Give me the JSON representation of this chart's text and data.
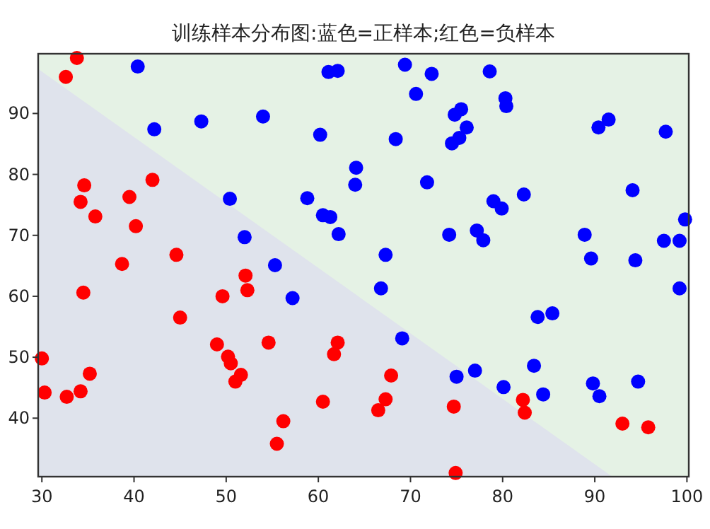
{
  "chart_data": {
    "type": "scatter",
    "title": "训练样本分布图:蓝色=正样本;红色=负样本",
    "marker": "circle",
    "xlim": [
      29.6,
      100.2
    ],
    "ylim": [
      30.4,
      99.8
    ],
    "xticks": [
      30,
      40,
      50,
      60,
      70,
      80,
      90,
      100
    ],
    "yticks": [
      40,
      50,
      60,
      70,
      80,
      90
    ],
    "bands": [
      {
        "axis": "x",
        "from": 29.6,
        "to": 100.2,
        "color": "#e5f2e5"
      }
    ],
    "series": [
      {
        "type": "area",
        "marker": "none",
        "color": "#dfe3ec",
        "x": [
          29.6,
          91.9
        ],
        "values": [
          97.3,
          30.4
        ]
      },
      {
        "color": "#ff0000",
        "x": [
          33.8,
          32.6,
          34.6,
          34.2,
          35.8,
          39.5,
          40.2,
          42.0,
          38.7,
          44.6,
          52.1,
          34.5,
          30.0,
          30.3,
          32.7,
          34.2,
          35.2,
          45.0,
          49.6,
          49.0,
          50.2,
          50.5,
          51.0,
          51.6,
          52.3,
          54.6,
          62.1,
          61.7,
          60.5,
          56.2,
          55.5,
          67.9,
          67.3,
          66.5,
          74.7,
          74.9,
          82.2,
          82.4,
          93.0,
          95.8
        ],
        "values": [
          99.1,
          96.0,
          78.2,
          75.5,
          73.1,
          76.3,
          71.5,
          79.1,
          65.3,
          66.8,
          63.4,
          60.6,
          49.8,
          44.2,
          43.5,
          44.4,
          47.3,
          56.5,
          60.0,
          52.1,
          50.1,
          49.0,
          46.0,
          47.1,
          61.0,
          52.4,
          52.4,
          50.5,
          42.7,
          39.5,
          35.8,
          47.0,
          43.1,
          41.3,
          41.9,
          31.0,
          43.0,
          40.9,
          39.1,
          38.5
        ]
      },
      {
        "color": "#0000ff",
        "x": [
          40.4,
          42.2,
          47.3,
          54.0,
          61.1,
          62.1,
          60.2,
          64.1,
          64.0,
          50.4,
          58.8,
          60.5,
          61.3,
          62.2,
          52.0,
          55.3,
          57.2,
          69.4,
          72.3,
          78.6,
          70.6,
          74.8,
          75.5,
          80.3,
          80.4,
          76.1,
          75.3,
          74.5,
          68.4,
          90.4,
          91.5,
          97.7,
          71.8,
          82.3,
          79.0,
          79.9,
          94.1,
          99.8,
          74.2,
          77.2,
          77.9,
          88.9,
          97.5,
          99.2,
          67.3,
          89.6,
          94.4,
          99.2,
          66.8,
          69.1,
          75.0,
          77.0,
          80.1,
          83.4,
          83.8,
          85.4,
          84.4,
          89.8,
          90.5,
          94.7
        ],
        "values": [
          97.7,
          87.4,
          88.7,
          89.5,
          96.8,
          97.0,
          86.5,
          81.1,
          78.3,
          76.0,
          76.1,
          73.3,
          73.0,
          70.2,
          69.7,
          65.1,
          59.7,
          98.0,
          96.5,
          96.9,
          93.2,
          89.8,
          90.7,
          92.5,
          91.2,
          87.7,
          86.0,
          85.1,
          85.8,
          87.7,
          89.0,
          87.0,
          78.7,
          76.7,
          75.6,
          74.4,
          77.4,
          72.6,
          70.1,
          70.8,
          69.2,
          70.1,
          69.1,
          69.1,
          66.8,
          66.2,
          65.9,
          61.3,
          61.3,
          53.1,
          46.8,
          47.8,
          45.1,
          48.6,
          56.6,
          57.2,
          43.9,
          45.7,
          43.6,
          46.0
        ]
      }
    ]
  }
}
